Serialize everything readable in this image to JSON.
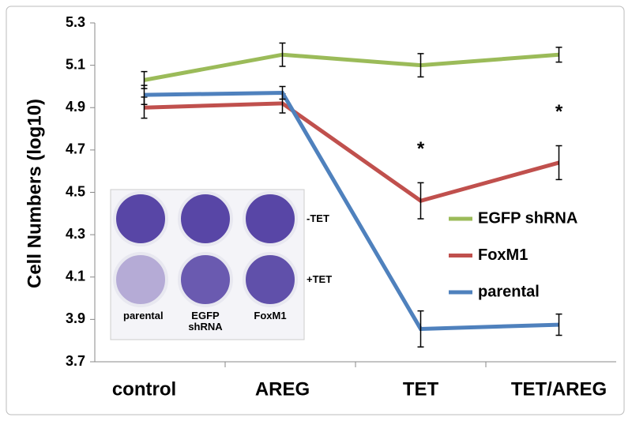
{
  "chart_data": {
    "type": "line",
    "y_label": "Cell Numbers (log10)",
    "categories": [
      "control",
      "AREG",
      "TET",
      "TET/AREG"
    ],
    "series": [
      {
        "name": "EGFP shRNA",
        "color": "#9bbb59",
        "values": [
          5.03,
          5.15,
          5.1,
          5.15
        ],
        "errors": [
          0.04,
          0.055,
          0.055,
          0.035
        ]
      },
      {
        "name": "FoxM1",
        "color": "#c0504d",
        "values": [
          4.9,
          4.92,
          4.46,
          4.64
        ],
        "errors": [
          0.05,
          0.045,
          0.085,
          0.08
        ]
      },
      {
        "name": "parental",
        "color": "#4f81bd",
        "values": [
          4.96,
          4.97,
          3.855,
          3.875
        ],
        "errors": [
          0.045,
          0.03,
          0.085,
          0.05
        ]
      }
    ],
    "ylim": [
      3.7,
      5.3
    ],
    "yticks": [
      3.7,
      3.9,
      4.1,
      4.3,
      4.5,
      4.7,
      4.9,
      5.1,
      5.3
    ],
    "annotations": [
      {
        "text": "*",
        "category": "TET"
      },
      {
        "text": "*",
        "category": "TET/AREG"
      }
    ],
    "inset": {
      "columns": [
        "parental",
        "EGFP shRNA",
        "FoxM1"
      ],
      "rows": [
        "-TET",
        "+TET"
      ]
    }
  }
}
